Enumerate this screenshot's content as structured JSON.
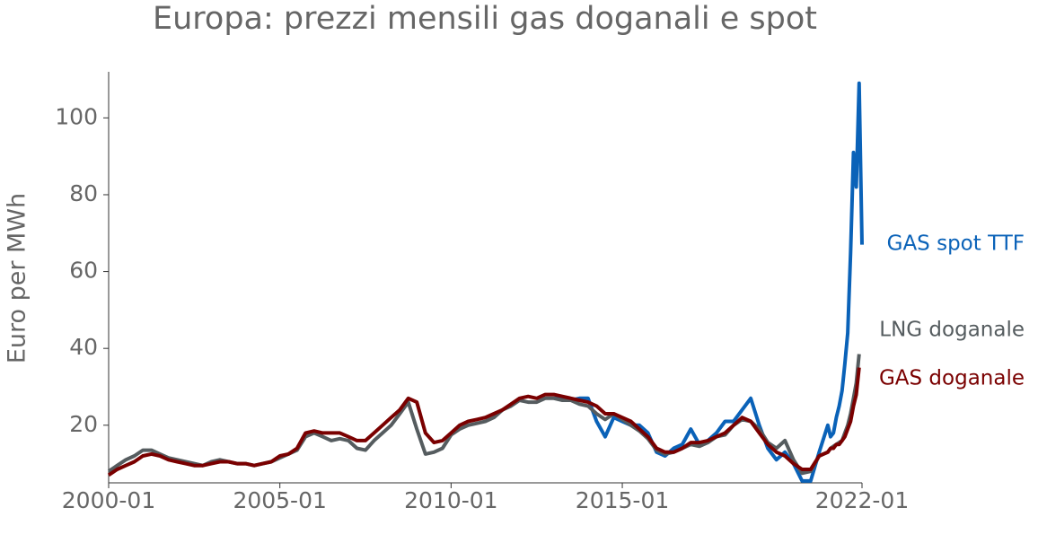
{
  "chart_data": {
    "type": "line",
    "title": "Europa: prezzi mensili gas doganali e spot",
    "y_label": "Euro per MWh",
    "x": [
      "2000-01",
      "2000-04",
      "2000-07",
      "2000-10",
      "2001-01",
      "2001-04",
      "2001-07",
      "2001-10",
      "2002-01",
      "2002-04",
      "2002-07",
      "2002-10",
      "2003-01",
      "2003-04",
      "2003-07",
      "2003-10",
      "2004-01",
      "2004-04",
      "2004-07",
      "2004-10",
      "2005-01",
      "2005-04",
      "2005-07",
      "2005-10",
      "2006-01",
      "2006-04",
      "2006-07",
      "2006-10",
      "2007-01",
      "2007-04",
      "2007-07",
      "2007-10",
      "2008-01",
      "2008-04",
      "2008-07",
      "2008-10",
      "2009-01",
      "2009-04",
      "2009-07",
      "2009-10",
      "2010-01",
      "2010-04",
      "2010-07",
      "2010-10",
      "2011-01",
      "2011-04",
      "2011-07",
      "2011-10",
      "2012-01",
      "2012-04",
      "2012-07",
      "2012-10",
      "2013-01",
      "2013-04",
      "2013-07",
      "2013-10",
      "2014-01",
      "2014-04",
      "2014-07",
      "2014-10",
      "2015-01",
      "2015-04",
      "2015-07",
      "2015-10",
      "2016-01",
      "2016-04",
      "2016-07",
      "2016-10",
      "2017-01",
      "2017-04",
      "2017-07",
      "2017-10",
      "2018-01",
      "2018-04",
      "2018-07",
      "2018-10",
      "2019-01",
      "2019-04",
      "2019-07",
      "2019-10",
      "2020-01",
      "2020-04",
      "2020-07",
      "2020-10",
      "2021-01",
      "2021-02",
      "2021-03",
      "2021-04",
      "2021-05",
      "2021-06",
      "2021-07",
      "2021-08",
      "2021-09",
      "2021-10",
      "2021-11",
      "2021-12",
      "2022-01"
    ],
    "series": [
      {
        "name": "GAS spot TTF",
        "color": "#0a62b8",
        "values": [
          null,
          null,
          null,
          null,
          null,
          null,
          null,
          null,
          null,
          null,
          null,
          null,
          null,
          null,
          null,
          null,
          null,
          null,
          null,
          null,
          null,
          null,
          null,
          null,
          null,
          null,
          null,
          null,
          null,
          null,
          null,
          null,
          null,
          null,
          null,
          null,
          null,
          null,
          null,
          null,
          null,
          null,
          null,
          null,
          null,
          null,
          null,
          null,
          null,
          null,
          null,
          null,
          27,
          27,
          26.5,
          27,
          27,
          21,
          17,
          22,
          21,
          20,
          20,
          18,
          13,
          12,
          14,
          15,
          19,
          15,
          16,
          18,
          21,
          21,
          24,
          27,
          20,
          14,
          11,
          13,
          10,
          5.5,
          5.5,
          13,
          20,
          17,
          18,
          22,
          25,
          29,
          36,
          44,
          65,
          91,
          82,
          109,
          67
        ]
      },
      {
        "name": "LNG doganale",
        "color": "#555c5f",
        "values": [
          8,
          9.5,
          11,
          12,
          13.5,
          13.5,
          12.5,
          11.5,
          11,
          10.5,
          10,
          9.5,
          10.5,
          11,
          10.5,
          10,
          10,
          9.5,
          10,
          10.5,
          11.5,
          12.5,
          13.5,
          17,
          18,
          17,
          16,
          16.5,
          16,
          14,
          13.5,
          16,
          18,
          20,
          23,
          26,
          19,
          12.5,
          13,
          14,
          17.5,
          19,
          20,
          20.5,
          21,
          22,
          24,
          25,
          26.5,
          26,
          26,
          27,
          27,
          26.5,
          26.5,
          25.5,
          25,
          23,
          21.5,
          23,
          21.5,
          20,
          18.5,
          16.5,
          13.5,
          12.5,
          13,
          14,
          15,
          14.5,
          15.5,
          17,
          17.5,
          20,
          21.5,
          21,
          19,
          15.5,
          14,
          16,
          11,
          7.5,
          8,
          12,
          13,
          14,
          14.5,
          15,
          15.5,
          16,
          18,
          20,
          23,
          27,
          31,
          38.5,
          null
        ]
      },
      {
        "name": "GAS doganale",
        "color": "#7a0000",
        "values": [
          7,
          8.5,
          9.5,
          10.5,
          12,
          12.5,
          12,
          11,
          10.5,
          10,
          9.5,
          9.5,
          10,
          10.5,
          10.5,
          10,
          10,
          9.5,
          10,
          10.5,
          12,
          12.5,
          14,
          18,
          18.5,
          18,
          18,
          18,
          17,
          16,
          16,
          18,
          20,
          22,
          24,
          27,
          26,
          18,
          15.5,
          16,
          18,
          20,
          21,
          21.5,
          22,
          23,
          24,
          25.5,
          27,
          27.5,
          27,
          28,
          28,
          27.5,
          27,
          26.5,
          26,
          25,
          23,
          23,
          22,
          21,
          19,
          17,
          14,
          13,
          13,
          14,
          15.5,
          15.5,
          16,
          17,
          18,
          20,
          22,
          21,
          18,
          15,
          13,
          12,
          10,
          8.5,
          8.5,
          12,
          13,
          14,
          14,
          15,
          15,
          16,
          17,
          19,
          21,
          25,
          28,
          35,
          null
        ]
      }
    ],
    "xlim": [
      "2000-01",
      "2022-01"
    ],
    "xticks": [
      "2000-01",
      "2005-01",
      "2010-01",
      "2015-01",
      "2022-01"
    ],
    "ylim": [
      5,
      112
    ],
    "yticks": [
      20,
      40,
      60,
      80,
      100
    ]
  }
}
